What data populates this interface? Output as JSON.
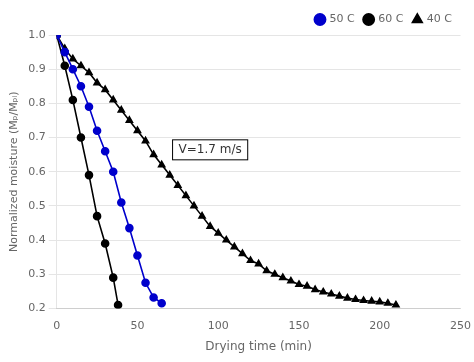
{
  "chart_data": {
    "type": "line",
    "xlabel": "Drying time (min)",
    "ylabel": "Normalized moisture (Mₚ/Mₚᵢ)",
    "annotation": "V=1.7 m/s",
    "xlim": [
      0,
      250
    ],
    "ylim": [
      0.2,
      1.0
    ],
    "xticks": [
      0,
      50,
      100,
      150,
      200,
      250
    ],
    "yticks": [
      0.2,
      0.3,
      0.4,
      0.5,
      0.6,
      0.7,
      0.8,
      0.9,
      {
        "value": 1.0,
        "label": "1.0"
      }
    ],
    "grid": true,
    "legend": "upper right",
    "series": [
      {
        "name": "50 C",
        "color": "#0000cc",
        "marker": "circle",
        "x": [
          0,
          5,
          10,
          15,
          20,
          25,
          30,
          35,
          40,
          45,
          50,
          55,
          60,
          65
        ],
        "values": [
          1.0,
          0.95,
          0.9,
          0.85,
          0.79,
          0.72,
          0.66,
          0.6,
          0.51,
          0.435,
          0.355,
          0.275,
          0.232,
          0.215
        ]
      },
      {
        "name": "60 C",
        "color": "#000000",
        "marker": "square",
        "x": [
          0,
          5,
          10,
          15,
          20,
          25,
          30,
          35,
          38
        ],
        "values": [
          1.0,
          0.91,
          0.81,
          0.7,
          0.59,
          0.47,
          0.39,
          0.29,
          0.21
        ]
      },
      {
        "name": "40 C",
        "color": "#000000",
        "marker": "triangle",
        "x": [
          0,
          5,
          10,
          15,
          20,
          25,
          30,
          35,
          40,
          45,
          50,
          55,
          60,
          65,
          70,
          75,
          80,
          85,
          90,
          95,
          100,
          105,
          110,
          115,
          120,
          125,
          130,
          135,
          140,
          145,
          150,
          155,
          160,
          165,
          170,
          175,
          180,
          185,
          190,
          195,
          200,
          205,
          210
        ],
        "values": [
          1.0,
          0.96,
          0.93,
          0.91,
          0.89,
          0.86,
          0.84,
          0.81,
          0.78,
          0.75,
          0.72,
          0.69,
          0.65,
          0.62,
          0.59,
          0.56,
          0.53,
          0.5,
          0.47,
          0.44,
          0.42,
          0.4,
          0.38,
          0.36,
          0.34,
          0.33,
          0.31,
          0.3,
          0.29,
          0.28,
          0.27,
          0.265,
          0.255,
          0.248,
          0.242,
          0.236,
          0.23,
          0.226,
          0.223,
          0.221,
          0.219,
          0.215,
          0.21
        ]
      }
    ]
  }
}
